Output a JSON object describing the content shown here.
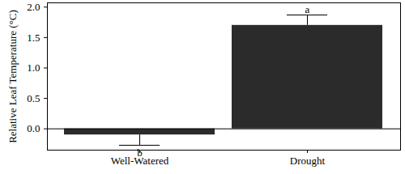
{
  "chart_data": {
    "type": "bar",
    "categories": [
      "Well-Watered",
      "Drought"
    ],
    "values": [
      -0.1,
      1.7
    ],
    "errors": [
      0.17,
      0.17
    ],
    "significance_letters": [
      "b",
      "a"
    ],
    "color": "#2b2b2b",
    "y_label": "Relative Leaf Temperature (°C)",
    "ylim": [
      -0.35,
      2.07
    ],
    "yticks": [
      {
        "value": 0,
        "label": "0.0"
      },
      {
        "value": 0.5,
        "label": "0.5"
      },
      {
        "value": 1,
        "label": "1.0"
      },
      {
        "value": 1.5,
        "label": "1.5"
      },
      {
        "value": 2,
        "label": "2.0"
      }
    ]
  }
}
